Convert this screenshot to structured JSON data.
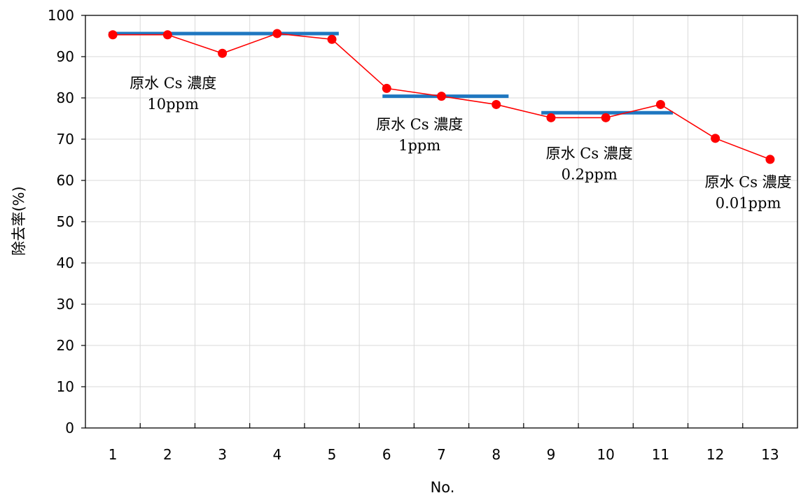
{
  "chart_data": {
    "type": "line",
    "xlabel": "No.",
    "ylabel": "除去率(%)",
    "categories": [
      "1",
      "2",
      "3",
      "4",
      "5",
      "6",
      "7",
      "8",
      "9",
      "10",
      "11",
      "12",
      "13"
    ],
    "ylim": [
      0,
      100
    ],
    "yticks": [
      0,
      10,
      20,
      30,
      40,
      50,
      60,
      70,
      80,
      90,
      100
    ],
    "grid": true,
    "legend": "none",
    "series": [
      {
        "color": "#ff0000",
        "marker": "circle",
        "values": [
          95.3,
          95.3,
          90.8,
          95.6,
          94.2,
          82.3,
          80.4,
          78.4,
          75.2,
          75.2,
          78.4,
          70.2,
          65.1
        ]
      }
    ],
    "reference_lines": [
      {
        "color": "#1f77c0",
        "y": 95.6,
        "x_start": 1,
        "x_end": 5.1
      },
      {
        "color": "#1f77c0",
        "y": 80.4,
        "x_start": 6,
        "x_end": 8.2
      },
      {
        "color": "#1f77c0",
        "y": 76.4,
        "x_start": 8.9,
        "x_end": 11.2
      }
    ],
    "annotations": [
      {
        "line1": "原水 Cs 濃度",
        "line2": "10ppm",
        "x": 2.1,
        "y": 80
      },
      {
        "line1": "原水 Cs 濃度",
        "line2": "1ppm",
        "x": 6.6,
        "y": 70
      },
      {
        "line1": "原水 Cs 濃度",
        "line2": "0.2ppm",
        "x": 9.7,
        "y": 63
      },
      {
        "line1": "原水 Cs 濃度",
        "line2": "0.01ppm",
        "x": 12.6,
        "y": 56
      }
    ]
  }
}
